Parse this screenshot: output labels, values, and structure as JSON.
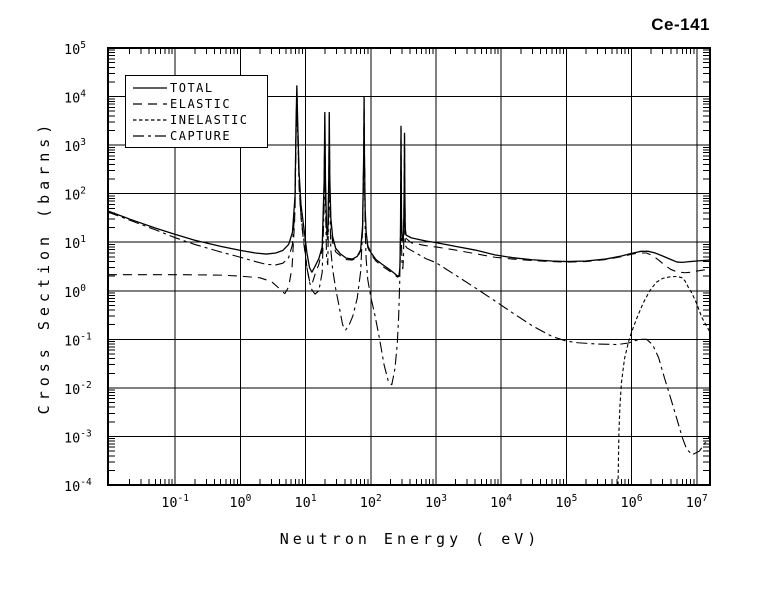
{
  "title": "Ce-141",
  "axes": {
    "x_label": "Neutron Energy ( eV)",
    "y_label": "Cross Section (barns)",
    "tick_base": "10",
    "x_tick_exponents": [
      -1,
      0,
      1,
      2,
      3,
      4,
      5,
      6,
      7
    ],
    "y_tick_exponents": [
      5,
      4,
      3,
      2,
      1,
      0,
      -1,
      -2,
      -3,
      -4
    ]
  },
  "legend": {
    "items": [
      {
        "label": "TOTAL",
        "dash": "solid"
      },
      {
        "label": "ELASTIC",
        "dash": "long-dash"
      },
      {
        "label": "INELASTIC",
        "dash": "short-dash"
      },
      {
        "label": "CAPTURE",
        "dash": "dash-dot"
      }
    ]
  },
  "colors": {
    "ink": "#000000",
    "background": "#ffffff"
  },
  "chart_data": {
    "type": "line",
    "title": "Ce-141",
    "xlabel": "Neutron Energy ( eV)",
    "ylabel": "Cross Section (barns)",
    "x_scale": "log",
    "y_scale": "log",
    "xlim": [
      0.0093,
      16000000
    ],
    "ylim": [
      0.0001,
      100000
    ],
    "grid": true,
    "legend_position": "top-left",
    "series": [
      {
        "name": "TOTAL",
        "dash": "solid",
        "points": [
          [
            0.0093,
            44
          ],
          [
            0.02,
            30
          ],
          [
            0.05,
            19.5
          ],
          [
            0.1,
            14.5
          ],
          [
            0.2,
            11
          ],
          [
            0.5,
            8.2
          ],
          [
            1,
            6.8
          ],
          [
            1.7,
            6.0
          ],
          [
            2.5,
            5.7
          ],
          [
            3.5,
            6.0
          ],
          [
            4.5,
            6.8
          ],
          [
            5.5,
            9
          ],
          [
            6.3,
            16
          ],
          [
            6.9,
            90
          ],
          [
            7.15,
            3000
          ],
          [
            7.35,
            17000
          ],
          [
            7.6,
            2500
          ],
          [
            7.95,
            280
          ],
          [
            8.5,
            60
          ],
          [
            9.5,
            18
          ],
          [
            10.5,
            6
          ],
          [
            11.5,
            3.0
          ],
          [
            12.5,
            2.4
          ],
          [
            14,
            3.2
          ],
          [
            16,
            4.6
          ],
          [
            18,
            8
          ],
          [
            19.3,
            200
          ],
          [
            19.75,
            4800
          ],
          [
            20.2,
            200
          ],
          [
            21,
            20
          ],
          [
            21.9,
            14
          ],
          [
            22.7,
            200
          ],
          [
            23.1,
            4800
          ],
          [
            23.55,
            200
          ],
          [
            24.4,
            32
          ],
          [
            26,
            13
          ],
          [
            29,
            7.5
          ],
          [
            34,
            5.8
          ],
          [
            42,
            4.7
          ],
          [
            52,
            4.5
          ],
          [
            62,
            5.1
          ],
          [
            70,
            7
          ],
          [
            75,
            22
          ],
          [
            78,
            700
          ],
          [
            79,
            9800
          ],
          [
            80,
            700
          ],
          [
            82,
            50
          ],
          [
            85,
            16
          ],
          [
            90,
            8.5
          ],
          [
            100,
            6.2
          ],
          [
            120,
            4.4
          ],
          [
            150,
            3.5
          ],
          [
            190,
            2.8
          ],
          [
            230,
            2.3
          ],
          [
            258,
            2.0
          ],
          [
            272,
            2.1
          ],
          [
            280,
            3
          ],
          [
            286,
            16
          ],
          [
            289.5,
            400
          ],
          [
            291,
            2500
          ],
          [
            293,
            400
          ],
          [
            296,
            32
          ],
          [
            303,
            12
          ],
          [
            312,
            10.5
          ],
          [
            320,
            17
          ],
          [
            326,
            150
          ],
          [
            329.5,
            1800
          ],
          [
            332.5,
            150
          ],
          [
            338,
            19
          ],
          [
            348,
            14
          ],
          [
            420,
            12.3
          ],
          [
            700,
            10.6
          ],
          [
            1000,
            9.8
          ],
          [
            2000,
            8.2
          ],
          [
            4000,
            6.9
          ],
          [
            8000,
            5.5
          ],
          [
            15000,
            4.8
          ],
          [
            30000,
            4.35
          ],
          [
            60000,
            4.1
          ],
          [
            100000,
            4.0
          ],
          [
            200000,
            4.1
          ],
          [
            400000,
            4.5
          ],
          [
            700000,
            5.2
          ],
          [
            1000000,
            5.9
          ],
          [
            1400000,
            6.5
          ],
          [
            1800000,
            6.5
          ],
          [
            2300000,
            6.0
          ],
          [
            3000000,
            5.2
          ],
          [
            4000000,
            4.4
          ],
          [
            5000000,
            3.9
          ],
          [
            6000000,
            3.85
          ],
          [
            8000000,
            4.0
          ],
          [
            10000000,
            4.1
          ],
          [
            16000000,
            4.3
          ]
        ]
      },
      {
        "name": "ELASTIC",
        "dash": "long-dash",
        "points": [
          [
            0.0093,
            2.15
          ],
          [
            0.1,
            2.15
          ],
          [
            0.5,
            2.1
          ],
          [
            1,
            2.0
          ],
          [
            2,
            1.85
          ],
          [
            3,
            1.55
          ],
          [
            4,
            1.1
          ],
          [
            4.8,
            0.87
          ],
          [
            5.5,
            1.2
          ],
          [
            6.2,
            3
          ],
          [
            6.8,
            28
          ],
          [
            7.1,
            1500
          ],
          [
            7.35,
            13500
          ],
          [
            7.65,
            1500
          ],
          [
            8,
            120
          ],
          [
            8.6,
            28
          ],
          [
            9.5,
            8.5
          ],
          [
            10.5,
            3.0
          ],
          [
            11.5,
            1.6
          ],
          [
            12.5,
            1.35
          ],
          [
            14,
            2.2
          ],
          [
            16,
            3.5
          ],
          [
            18,
            7
          ],
          [
            19.3,
            150
          ],
          [
            19.75,
            4200
          ],
          [
            20.2,
            150
          ],
          [
            21,
            16
          ],
          [
            21.9,
            11
          ],
          [
            22.7,
            150
          ],
          [
            23.1,
            4200
          ],
          [
            23.55,
            150
          ],
          [
            24.4,
            26
          ],
          [
            26,
            10
          ],
          [
            29,
            6.3
          ],
          [
            34,
            5.3
          ],
          [
            42,
            4.4
          ],
          [
            52,
            4.3
          ],
          [
            62,
            4.85
          ],
          [
            70,
            6.6
          ],
          [
            75,
            20
          ],
          [
            78,
            620
          ],
          [
            79,
            8800
          ],
          [
            80,
            620
          ],
          [
            82,
            45
          ],
          [
            85,
            14.5
          ],
          [
            90,
            7.8
          ],
          [
            100,
            5.7
          ],
          [
            120,
            4.1
          ],
          [
            150,
            3.2
          ],
          [
            190,
            2.6
          ],
          [
            230,
            2.15
          ],
          [
            258,
            1.9
          ],
          [
            272,
            2.0
          ],
          [
            280,
            2.8
          ],
          [
            286,
            14
          ],
          [
            289.5,
            360
          ],
          [
            291,
            2250
          ],
          [
            293,
            360
          ],
          [
            296,
            28
          ],
          [
            303,
            10.5
          ],
          [
            312,
            9.3
          ],
          [
            320,
            15
          ],
          [
            326,
            130
          ],
          [
            329.5,
            1600
          ],
          [
            332.5,
            130
          ],
          [
            338,
            16
          ],
          [
            348,
            12
          ],
          [
            420,
            9.7
          ],
          [
            700,
            8.5
          ],
          [
            1000,
            8.0
          ],
          [
            2000,
            6.9
          ],
          [
            4000,
            5.8
          ],
          [
            8000,
            4.9
          ],
          [
            15000,
            4.5
          ],
          [
            30000,
            4.2
          ],
          [
            60000,
            4.0
          ],
          [
            100000,
            3.9
          ],
          [
            200000,
            4.0
          ],
          [
            400000,
            4.4
          ],
          [
            700000,
            5.05
          ],
          [
            1000000,
            5.65
          ],
          [
            1300000,
            6.0
          ],
          [
            1700000,
            6.0
          ],
          [
            2100000,
            5.3
          ],
          [
            2600000,
            4.3
          ],
          [
            3200000,
            3.4
          ],
          [
            4000000,
            2.75
          ],
          [
            5000000,
            2.45
          ],
          [
            6500000,
            2.35
          ],
          [
            8000000,
            2.4
          ],
          [
            10000000,
            2.55
          ],
          [
            16000000,
            2.8
          ]
        ]
      },
      {
        "name": "INELASTIC",
        "dash": "short-dash",
        "points": [
          [
            620000,
            0.0001
          ],
          [
            640000,
            0.0012
          ],
          [
            665000,
            0.0045
          ],
          [
            700000,
            0.013
          ],
          [
            780000,
            0.04
          ],
          [
            900000,
            0.09
          ],
          [
            1000000,
            0.14
          ],
          [
            1200000,
            0.27
          ],
          [
            1500000,
            0.55
          ],
          [
            1900000,
            1.0
          ],
          [
            2400000,
            1.5
          ],
          [
            3000000,
            1.8
          ],
          [
            4000000,
            1.95
          ],
          [
            5000000,
            1.97
          ],
          [
            6000000,
            1.85
          ],
          [
            6600000,
            1.6
          ],
          [
            7500000,
            1.15
          ],
          [
            8400000,
            0.9
          ],
          [
            10000000,
            0.54
          ],
          [
            12000000,
            0.28
          ],
          [
            16000000,
            0.14
          ]
        ]
      },
      {
        "name": "CAPTURE",
        "dash": "dash-dot",
        "points": [
          [
            0.0093,
            42
          ],
          [
            0.02,
            28.5
          ],
          [
            0.05,
            18
          ],
          [
            0.1,
            12.4
          ],
          [
            0.2,
            9
          ],
          [
            0.5,
            6.3
          ],
          [
            1,
            4.9
          ],
          [
            1.7,
            4.0
          ],
          [
            2.5,
            3.5
          ],
          [
            3.5,
            3.4
          ],
          [
            4.5,
            3.7
          ],
          [
            5.5,
            4.8
          ],
          [
            6.3,
            9
          ],
          [
            6.9,
            50
          ],
          [
            7.15,
            1600
          ],
          [
            7.35,
            3800
          ],
          [
            7.6,
            1400
          ],
          [
            7.95,
            160
          ],
          [
            8.5,
            35
          ],
          [
            9.5,
            10
          ],
          [
            10.5,
            3
          ],
          [
            11.5,
            1.5
          ],
          [
            12.5,
            1.05
          ],
          [
            14,
            0.85
          ],
          [
            16,
            1.0
          ],
          [
            18,
            2.4
          ],
          [
            19.3,
            60
          ],
          [
            19.75,
            800
          ],
          [
            20.2,
            60
          ],
          [
            21,
            5
          ],
          [
            21.9,
            3.4
          ],
          [
            22.7,
            60
          ],
          [
            23.1,
            800
          ],
          [
            23.55,
            60
          ],
          [
            24.4,
            7
          ],
          [
            26,
            2.8
          ],
          [
            29,
            1.1
          ],
          [
            33,
            0.45
          ],
          [
            37,
            0.2
          ],
          [
            41,
            0.155
          ],
          [
            46,
            0.19
          ],
          [
            53,
            0.3
          ],
          [
            62,
            0.7
          ],
          [
            70,
            2.5
          ],
          [
            75,
            18
          ],
          [
            78,
            480
          ],
          [
            79,
            1500
          ],
          [
            80,
            480
          ],
          [
            82,
            20
          ],
          [
            85,
            4.5
          ],
          [
            90,
            1.7
          ],
          [
            100,
            0.75
          ],
          [
            115,
            0.33
          ],
          [
            135,
            0.11
          ],
          [
            160,
            0.03
          ],
          [
            185,
            0.014
          ],
          [
            210,
            0.0115
          ],
          [
            235,
            0.025
          ],
          [
            255,
            0.08
          ],
          [
            268,
            0.3
          ],
          [
            278,
            1.5
          ],
          [
            285,
            12
          ],
          [
            289.5,
            120
          ],
          [
            291,
            450
          ],
          [
            293,
            120
          ],
          [
            296,
            10
          ],
          [
            302,
            3.5
          ],
          [
            310,
            2.8
          ],
          [
            318,
            5
          ],
          [
            325,
            35
          ],
          [
            329.5,
            300
          ],
          [
            332.5,
            35
          ],
          [
            340,
            8.5
          ],
          [
            360,
            7.6
          ],
          [
            700,
            4.6
          ],
          [
            1000,
            3.8
          ],
          [
            2000,
            2.1
          ],
          [
            4000,
            1.15
          ],
          [
            8000,
            0.62
          ],
          [
            15000,
            0.35
          ],
          [
            30000,
            0.19
          ],
          [
            60000,
            0.115
          ],
          [
            100000,
            0.092
          ],
          [
            150000,
            0.085
          ],
          [
            300000,
            0.08
          ],
          [
            600000,
            0.078
          ],
          [
            900000,
            0.084
          ],
          [
            1300000,
            0.1
          ],
          [
            1700000,
            0.1
          ],
          [
            2100000,
            0.078
          ],
          [
            2600000,
            0.042
          ],
          [
            3200000,
            0.016
          ],
          [
            4000000,
            0.006
          ],
          [
            5000000,
            0.0022
          ],
          [
            6000000,
            0.00095
          ],
          [
            7000000,
            0.00055
          ],
          [
            8500000,
            0.00042
          ],
          [
            11000000,
            0.0005
          ],
          [
            14000000,
            0.0008
          ],
          [
            18000000,
            0.0013
          ]
        ]
      }
    ]
  }
}
